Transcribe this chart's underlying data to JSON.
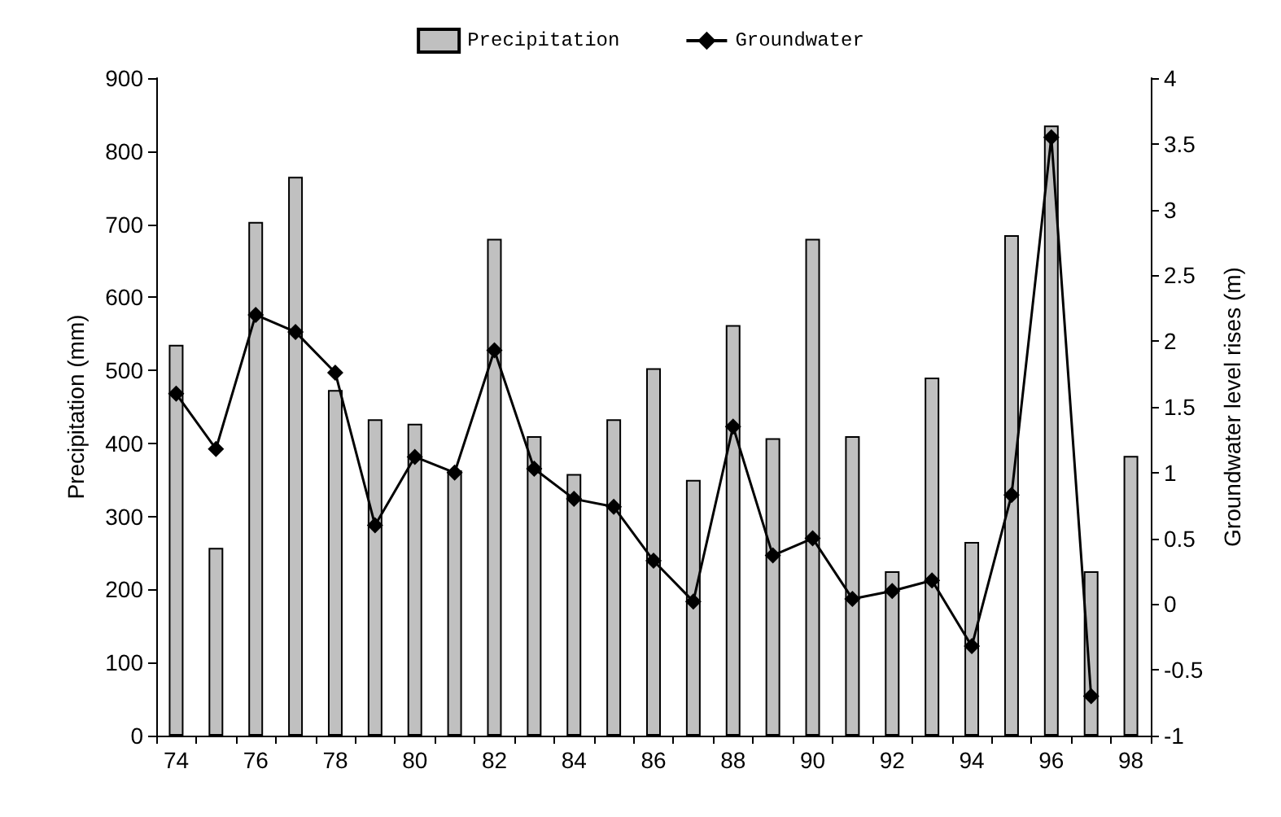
{
  "chart_data": {
    "type": "bar",
    "ylabel": "Precipitation (mm)",
    "y2label": "Groundwater level rises (m)",
    "categories": [
      "74",
      null,
      "76",
      null,
      "78",
      null,
      "80",
      null,
      "82",
      null,
      "84",
      null,
      "86",
      null,
      "88",
      null,
      "90",
      null,
      "92",
      null,
      "94",
      null,
      "96",
      null,
      "98"
    ],
    "series": [
      {
        "name": "Precipitation",
        "color": "#c0c0c0",
        "values": [
          535,
          257,
          703,
          765,
          473,
          433,
          427,
          363,
          680,
          410,
          358,
          433,
          503,
          350,
          562,
          407,
          680,
          410,
          225,
          490,
          265,
          685,
          835,
          225,
          383
        ]
      },
      {
        "name": "Groundwater",
        "type": "line",
        "axis": "y2",
        "color": "#000000",
        "values": [
          1.6,
          1.18,
          2.2,
          2.07,
          1.76,
          0.6,
          1.12,
          1.0,
          1.93,
          1.03,
          0.8,
          0.74,
          0.33,
          0.02,
          1.35,
          0.37,
          0.5,
          0.04,
          0.1,
          0.18,
          -0.32,
          0.83,
          3.55,
          -0.7,
          null
        ]
      }
    ],
    "ylim": [
      0,
      900
    ],
    "yticks": [
      0,
      100,
      200,
      300,
      400,
      500,
      600,
      700,
      800,
      900
    ],
    "y2lim": [
      -1,
      4
    ],
    "y2ticks": [
      -1,
      -0.5,
      0,
      0.5,
      1,
      1.5,
      2,
      2.5,
      3,
      3.5,
      4
    ],
    "legend": "top",
    "grid": false,
    "marker": "diamond",
    "line_style": "solid"
  }
}
